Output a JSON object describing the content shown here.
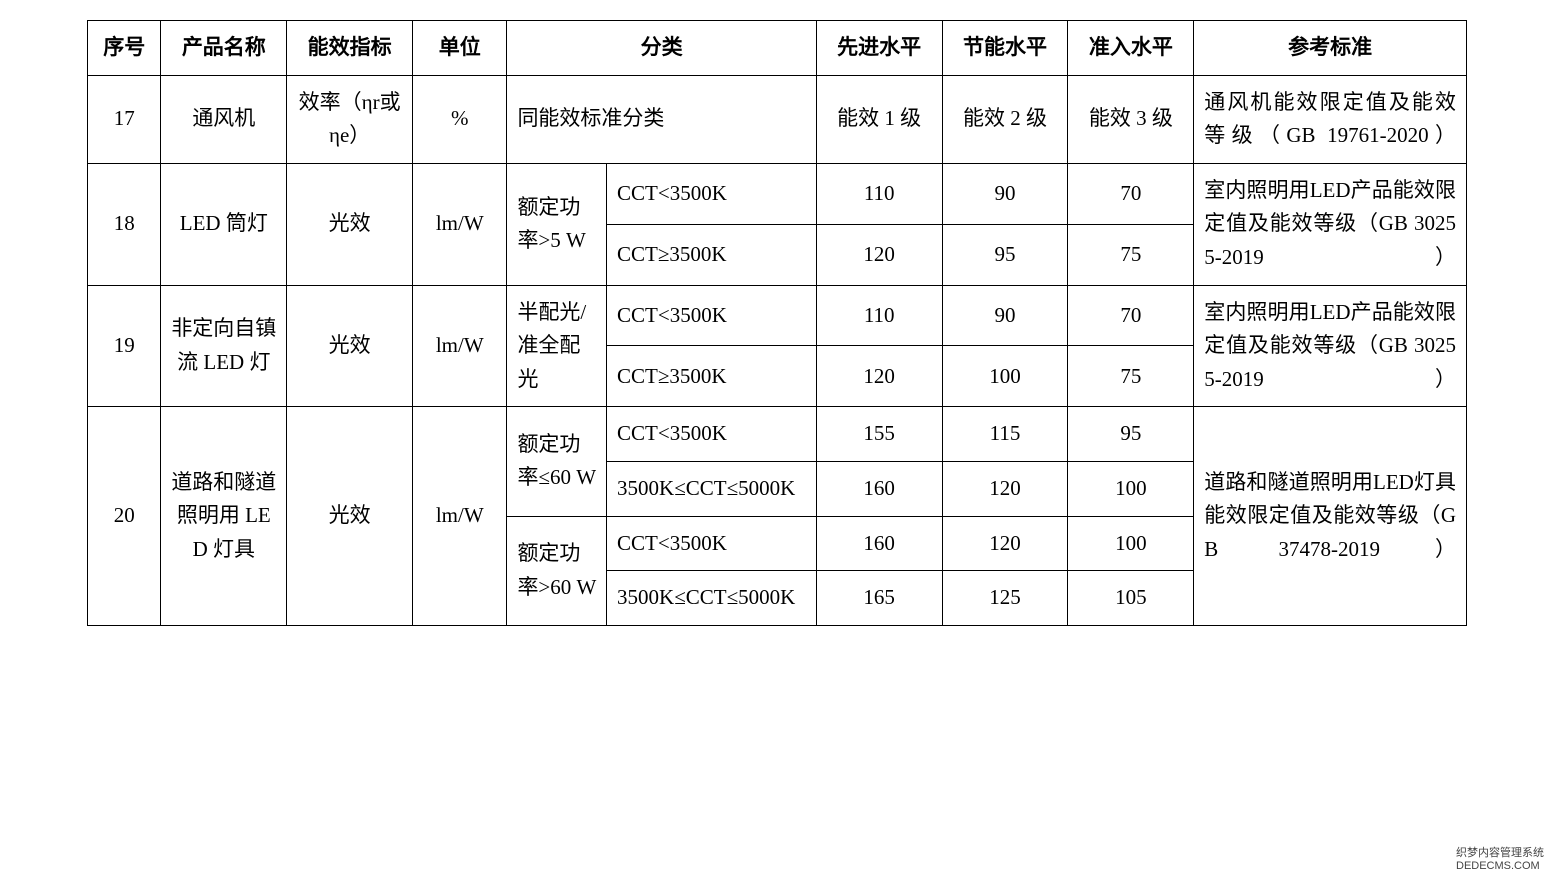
{
  "header": {
    "seq": "序号",
    "product": "产品名称",
    "metric": "能效指标",
    "unit": "单位",
    "category": "分类",
    "advanced": "先进水平",
    "energy_saving": "节能水平",
    "entry": "准入水平",
    "reference": "参考标准"
  },
  "rows": {
    "r17": {
      "seq": "17",
      "product": "通风机",
      "metric": "效率（ηr或ηe）",
      "unit": "%",
      "category": "同能效标准分类",
      "advanced": "能效 1 级",
      "saving": "能效 2 级",
      "entry": "能效 3 级",
      "reference": "通风机能效限定值及能效等级（GB 19761-2020）"
    },
    "r18": {
      "seq": "18",
      "product": "LED 筒灯",
      "metric": "光效",
      "unit": "lm/W",
      "cat1": "额定功率>5 W",
      "sub": [
        {
          "cat2": "CCT<3500K",
          "adv": "110",
          "save": "90",
          "entry": "70"
        },
        {
          "cat2": "CCT≥3500K",
          "adv": "120",
          "save": "95",
          "entry": "75"
        }
      ],
      "reference": "室内照明用LED产品能效限定值及能效等级（GB 30255-2019）"
    },
    "r19": {
      "seq": "19",
      "product": "非定向自镇流 LED 灯",
      "metric": "光效",
      "unit": "lm/W",
      "cat1": "半配光/准全配光",
      "sub": [
        {
          "cat2": "CCT<3500K",
          "adv": "110",
          "save": "90",
          "entry": "70"
        },
        {
          "cat2": "CCT≥3500K",
          "adv": "120",
          "save": "100",
          "entry": "75"
        }
      ],
      "reference": "室内照明用LED产品能效限定值及能效等级（GB 30255-2019）"
    },
    "r20": {
      "seq": "20",
      "product": "道路和隧道照明用 LED 灯具",
      "metric": "光效",
      "unit": "lm/W",
      "groups": [
        {
          "cat1": "额定功率≤60 W",
          "sub": [
            {
              "cat2": "CCT<3500K",
              "adv": "155",
              "save": "115",
              "entry": "95"
            },
            {
              "cat2": "3500K≤CCT≤5000K",
              "adv": "160",
              "save": "120",
              "entry": "100"
            }
          ]
        },
        {
          "cat1": "额定功率>60 W",
          "sub": [
            {
              "cat2": "CCT<3500K",
              "adv": "160",
              "save": "120",
              "entry": "100"
            },
            {
              "cat2": "3500K≤CCT≤5000K",
              "adv": "165",
              "save": "125",
              "entry": "105"
            }
          ]
        }
      ],
      "reference": "道路和隧道照明用LED灯具能效限定值及能效等级（GB 37478-2019）"
    }
  },
  "watermark": {
    "text": "织梦内容管理系统",
    "url": "DEDECMS.COM"
  },
  "style": {
    "border_color": "#000000",
    "background": "#ffffff",
    "font_family": "SimSun",
    "header_fontsize": 21,
    "cell_fontsize": 21
  }
}
